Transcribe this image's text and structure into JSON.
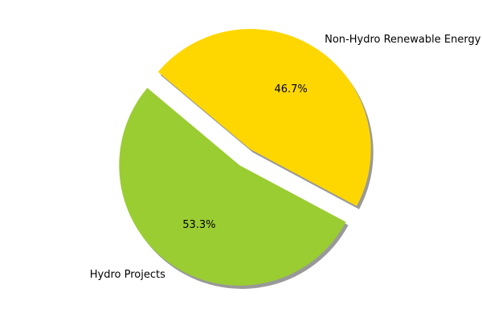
{
  "chart_data": {
    "type": "pie",
    "title": "",
    "slices": [
      {
        "label": "Hydro Projects",
        "value": 53.3,
        "pct_label": "53.3%",
        "color": "#9acd32",
        "exploded": true
      },
      {
        "label": "Non-Hydro Renewable Energy",
        "value": 46.7,
        "pct_label": "46.7%",
        "color": "#ffd700",
        "exploded": true
      }
    ],
    "shadow": true,
    "legend": "none"
  }
}
